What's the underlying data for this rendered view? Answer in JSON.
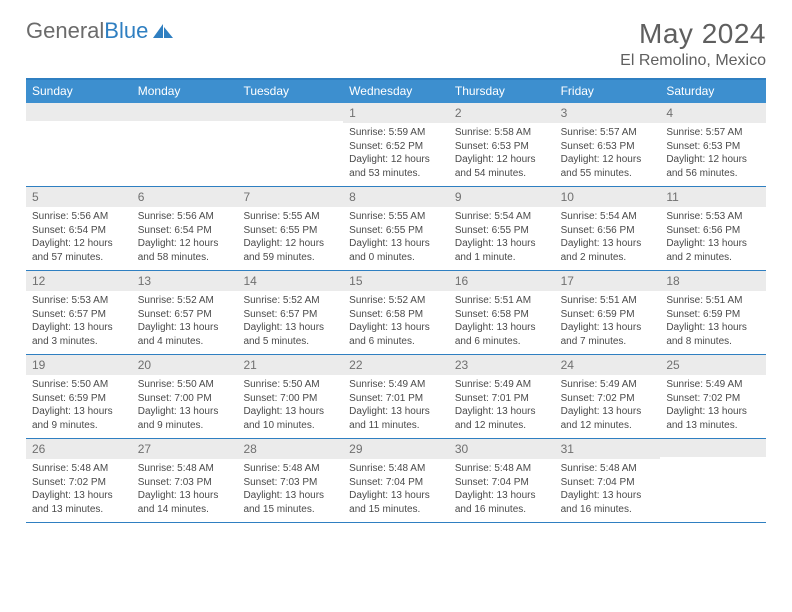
{
  "logo": {
    "text_gray": "General",
    "text_blue": "Blue"
  },
  "title": "May 2024",
  "location": "El Remolino, Mexico",
  "header_bg": "#3d8fcf",
  "border_color": "#2f7fc1",
  "daynum_bg": "#ebebeb",
  "weekdays": [
    "Sunday",
    "Monday",
    "Tuesday",
    "Wednesday",
    "Thursday",
    "Friday",
    "Saturday"
  ],
  "weeks": [
    [
      {
        "num": "",
        "lines": []
      },
      {
        "num": "",
        "lines": []
      },
      {
        "num": "",
        "lines": []
      },
      {
        "num": "1",
        "lines": [
          "Sunrise: 5:59 AM",
          "Sunset: 6:52 PM",
          "Daylight: 12 hours and 53 minutes."
        ]
      },
      {
        "num": "2",
        "lines": [
          "Sunrise: 5:58 AM",
          "Sunset: 6:53 PM",
          "Daylight: 12 hours and 54 minutes."
        ]
      },
      {
        "num": "3",
        "lines": [
          "Sunrise: 5:57 AM",
          "Sunset: 6:53 PM",
          "Daylight: 12 hours and 55 minutes."
        ]
      },
      {
        "num": "4",
        "lines": [
          "Sunrise: 5:57 AM",
          "Sunset: 6:53 PM",
          "Daylight: 12 hours and 56 minutes."
        ]
      }
    ],
    [
      {
        "num": "5",
        "lines": [
          "Sunrise: 5:56 AM",
          "Sunset: 6:54 PM",
          "Daylight: 12 hours and 57 minutes."
        ]
      },
      {
        "num": "6",
        "lines": [
          "Sunrise: 5:56 AM",
          "Sunset: 6:54 PM",
          "Daylight: 12 hours and 58 minutes."
        ]
      },
      {
        "num": "7",
        "lines": [
          "Sunrise: 5:55 AM",
          "Sunset: 6:55 PM",
          "Daylight: 12 hours and 59 minutes."
        ]
      },
      {
        "num": "8",
        "lines": [
          "Sunrise: 5:55 AM",
          "Sunset: 6:55 PM",
          "Daylight: 13 hours and 0 minutes."
        ]
      },
      {
        "num": "9",
        "lines": [
          "Sunrise: 5:54 AM",
          "Sunset: 6:55 PM",
          "Daylight: 13 hours and 1 minute."
        ]
      },
      {
        "num": "10",
        "lines": [
          "Sunrise: 5:54 AM",
          "Sunset: 6:56 PM",
          "Daylight: 13 hours and 2 minutes."
        ]
      },
      {
        "num": "11",
        "lines": [
          "Sunrise: 5:53 AM",
          "Sunset: 6:56 PM",
          "Daylight: 13 hours and 2 minutes."
        ]
      }
    ],
    [
      {
        "num": "12",
        "lines": [
          "Sunrise: 5:53 AM",
          "Sunset: 6:57 PM",
          "Daylight: 13 hours and 3 minutes."
        ]
      },
      {
        "num": "13",
        "lines": [
          "Sunrise: 5:52 AM",
          "Sunset: 6:57 PM",
          "Daylight: 13 hours and 4 minutes."
        ]
      },
      {
        "num": "14",
        "lines": [
          "Sunrise: 5:52 AM",
          "Sunset: 6:57 PM",
          "Daylight: 13 hours and 5 minutes."
        ]
      },
      {
        "num": "15",
        "lines": [
          "Sunrise: 5:52 AM",
          "Sunset: 6:58 PM",
          "Daylight: 13 hours and 6 minutes."
        ]
      },
      {
        "num": "16",
        "lines": [
          "Sunrise: 5:51 AM",
          "Sunset: 6:58 PM",
          "Daylight: 13 hours and 6 minutes."
        ]
      },
      {
        "num": "17",
        "lines": [
          "Sunrise: 5:51 AM",
          "Sunset: 6:59 PM",
          "Daylight: 13 hours and 7 minutes."
        ]
      },
      {
        "num": "18",
        "lines": [
          "Sunrise: 5:51 AM",
          "Sunset: 6:59 PM",
          "Daylight: 13 hours and 8 minutes."
        ]
      }
    ],
    [
      {
        "num": "19",
        "lines": [
          "Sunrise: 5:50 AM",
          "Sunset: 6:59 PM",
          "Daylight: 13 hours and 9 minutes."
        ]
      },
      {
        "num": "20",
        "lines": [
          "Sunrise: 5:50 AM",
          "Sunset: 7:00 PM",
          "Daylight: 13 hours and 9 minutes."
        ]
      },
      {
        "num": "21",
        "lines": [
          "Sunrise: 5:50 AM",
          "Sunset: 7:00 PM",
          "Daylight: 13 hours and 10 minutes."
        ]
      },
      {
        "num": "22",
        "lines": [
          "Sunrise: 5:49 AM",
          "Sunset: 7:01 PM",
          "Daylight: 13 hours and 11 minutes."
        ]
      },
      {
        "num": "23",
        "lines": [
          "Sunrise: 5:49 AM",
          "Sunset: 7:01 PM",
          "Daylight: 13 hours and 12 minutes."
        ]
      },
      {
        "num": "24",
        "lines": [
          "Sunrise: 5:49 AM",
          "Sunset: 7:02 PM",
          "Daylight: 13 hours and 12 minutes."
        ]
      },
      {
        "num": "25",
        "lines": [
          "Sunrise: 5:49 AM",
          "Sunset: 7:02 PM",
          "Daylight: 13 hours and 13 minutes."
        ]
      }
    ],
    [
      {
        "num": "26",
        "lines": [
          "Sunrise: 5:48 AM",
          "Sunset: 7:02 PM",
          "Daylight: 13 hours and 13 minutes."
        ]
      },
      {
        "num": "27",
        "lines": [
          "Sunrise: 5:48 AM",
          "Sunset: 7:03 PM",
          "Daylight: 13 hours and 14 minutes."
        ]
      },
      {
        "num": "28",
        "lines": [
          "Sunrise: 5:48 AM",
          "Sunset: 7:03 PM",
          "Daylight: 13 hours and 15 minutes."
        ]
      },
      {
        "num": "29",
        "lines": [
          "Sunrise: 5:48 AM",
          "Sunset: 7:04 PM",
          "Daylight: 13 hours and 15 minutes."
        ]
      },
      {
        "num": "30",
        "lines": [
          "Sunrise: 5:48 AM",
          "Sunset: 7:04 PM",
          "Daylight: 13 hours and 16 minutes."
        ]
      },
      {
        "num": "31",
        "lines": [
          "Sunrise: 5:48 AM",
          "Sunset: 7:04 PM",
          "Daylight: 13 hours and 16 minutes."
        ]
      },
      {
        "num": "",
        "lines": []
      }
    ]
  ]
}
